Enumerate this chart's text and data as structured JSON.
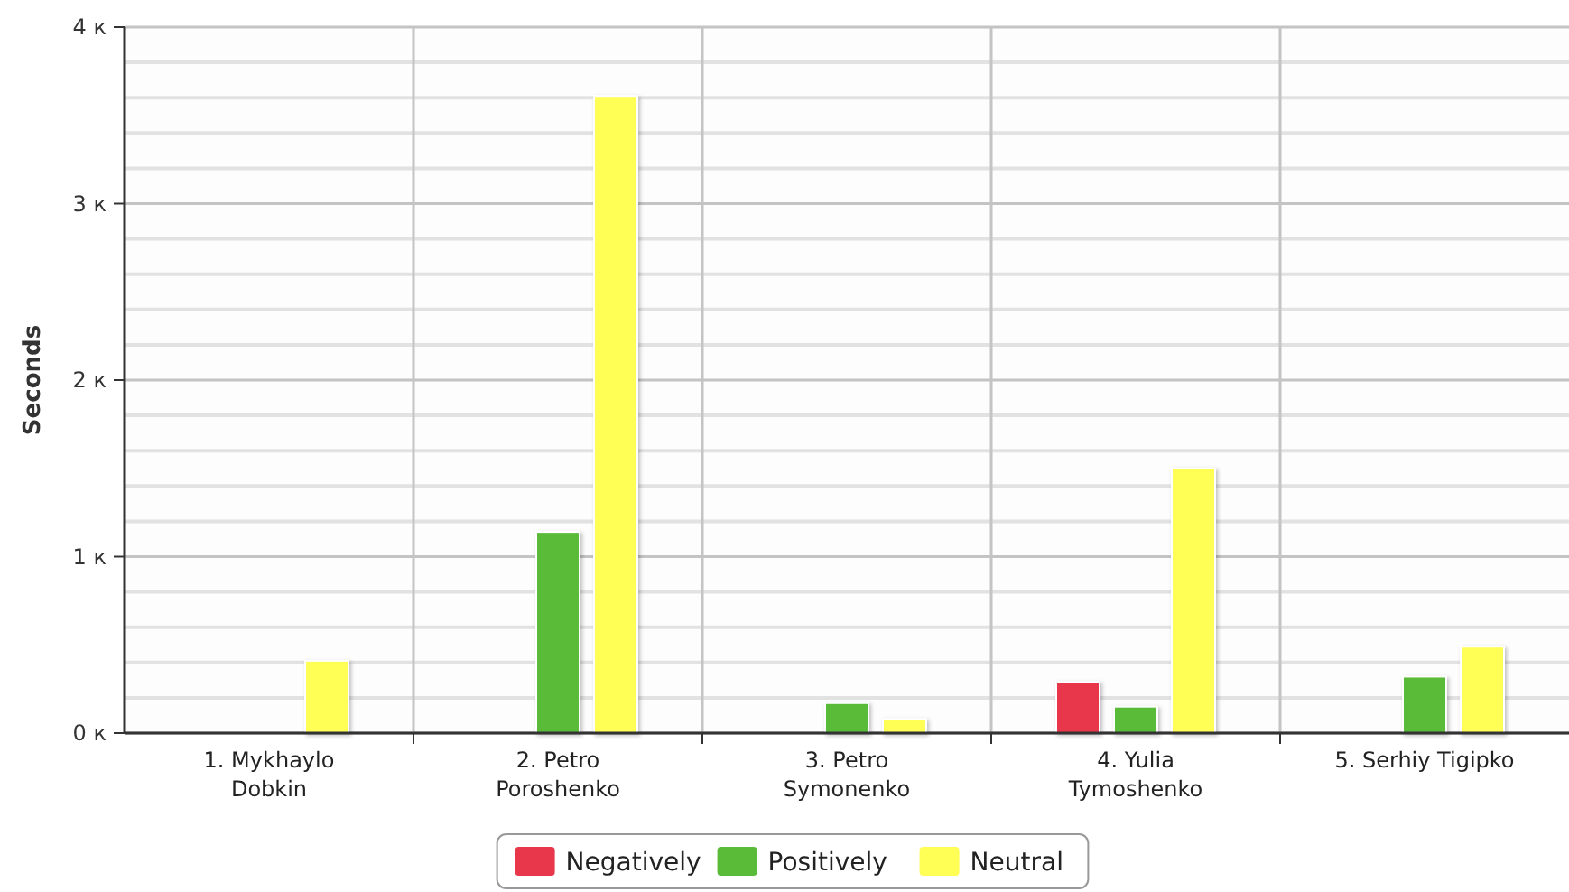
{
  "chart_data": {
    "type": "bar",
    "ylabel": "Seconds",
    "categories": [
      "1. Mykhaylo Dobkin",
      "2. Petro Poroshenko",
      "3. Petro Symonenko",
      "4. Yulia Tymoshenko",
      "5. Serhiy Tigipko"
    ],
    "series": [
      {
        "name": "Negatively",
        "color": "#e8374a",
        "values": [
          null,
          null,
          null,
          0.29,
          null
        ]
      },
      {
        "name": "Positively",
        "color": "#59bb38",
        "values": [
          null,
          1.14,
          0.17,
          0.15,
          0.32
        ]
      },
      {
        "name": "Neutral",
        "color": "#ffff55",
        "values": [
          0.41,
          3.61,
          0.08,
          1.5,
          0.49
        ]
      }
    ],
    "ylim": [
      0,
      4
    ],
    "yticks": [
      {
        "value": 0,
        "label": "0 к"
      },
      {
        "value": 0.2,
        "label": null
      },
      {
        "value": 0.4,
        "label": null
      },
      {
        "value": 0.6,
        "label": null
      },
      {
        "value": 0.8,
        "label": null
      },
      {
        "value": 1,
        "label": "1 к"
      },
      {
        "value": 1.2,
        "label": null
      },
      {
        "value": 1.4,
        "label": null
      },
      {
        "value": 1.6,
        "label": null
      },
      {
        "value": 1.8,
        "label": null
      },
      {
        "value": 2,
        "label": "2 к"
      },
      {
        "value": 2.2,
        "label": null
      },
      {
        "value": 2.4,
        "label": null
      },
      {
        "value": 2.6,
        "label": null
      },
      {
        "value": 2.8,
        "label": null
      },
      {
        "value": 3,
        "label": "3 к"
      },
      {
        "value": 3.2,
        "label": null
      },
      {
        "value": 3.4,
        "label": null
      },
      {
        "value": 3.6,
        "label": null
      },
      {
        "value": 3.8,
        "label": null
      },
      {
        "value": 4,
        "label": "4 к"
      }
    ],
    "grid": true,
    "legend": "bottom"
  }
}
